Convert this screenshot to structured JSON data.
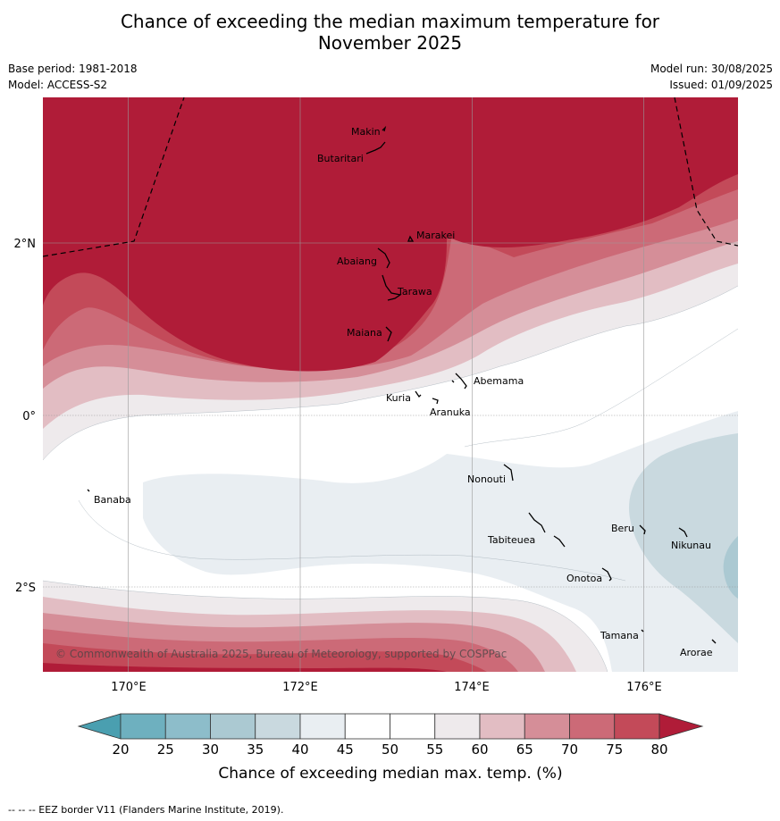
{
  "title_line1": "Chance of exceeding the median maximum temperature for",
  "title_line2": "November 2025",
  "meta_left": [
    "Base period: 1981-2018",
    "Model: ACCESS-S2"
  ],
  "meta_right": [
    "Model run: 30/08/2025",
    "Issued: 01/09/2025"
  ],
  "lat_labels": [
    "2°N",
    "0°",
    "2°S"
  ],
  "lon_labels": [
    "170°E",
    "172°E",
    "174°E",
    "176°E"
  ],
  "places": [
    {
      "name": "Makin"
    },
    {
      "name": "Butaritari"
    },
    {
      "name": "Marakei"
    },
    {
      "name": "Abaiang"
    },
    {
      "name": "Tarawa"
    },
    {
      "name": "Maiana"
    },
    {
      "name": "Abemama"
    },
    {
      "name": "Kuria"
    },
    {
      "name": "Aranuka"
    },
    {
      "name": "Banaba"
    },
    {
      "name": "Nonouti"
    },
    {
      "name": "Beru"
    },
    {
      "name": "Nikunau"
    },
    {
      "name": "Tabiteuea"
    },
    {
      "name": "Onotoa"
    },
    {
      "name": "Tamana"
    },
    {
      "name": "Arorae"
    }
  ],
  "copyright": "© Commonwealth of Australia 2025, Bureau of Meteorology, supported by COSPPac",
  "colorbar": {
    "ticks": [
      "20",
      "25",
      "30",
      "35",
      "40",
      "45",
      "50",
      "55",
      "60",
      "65",
      "70",
      "75",
      "80"
    ],
    "colors": {
      "lt20": "#4a9fb0",
      "20_25": "#6eb0bf",
      "25_30": "#8dbdca",
      "30_35": "#abc9d2",
      "35_40": "#c9d9df",
      "40_45": "#e9eef2",
      "45_50": "#ffffff",
      "50_55": "#ffffff",
      "55_60": "#eeeaec",
      "60_65": "#e2bdc3",
      "65_70": "#d58e98",
      "70_75": "#cc6a77",
      "75_80": "#c34a59",
      "gt80": "#b01c38"
    },
    "label": "Chance of exceeding median max. temp. (%)"
  },
  "footer": "--  --  -- EEZ border V11 (Flanders Marine Institute, 2019)."
}
